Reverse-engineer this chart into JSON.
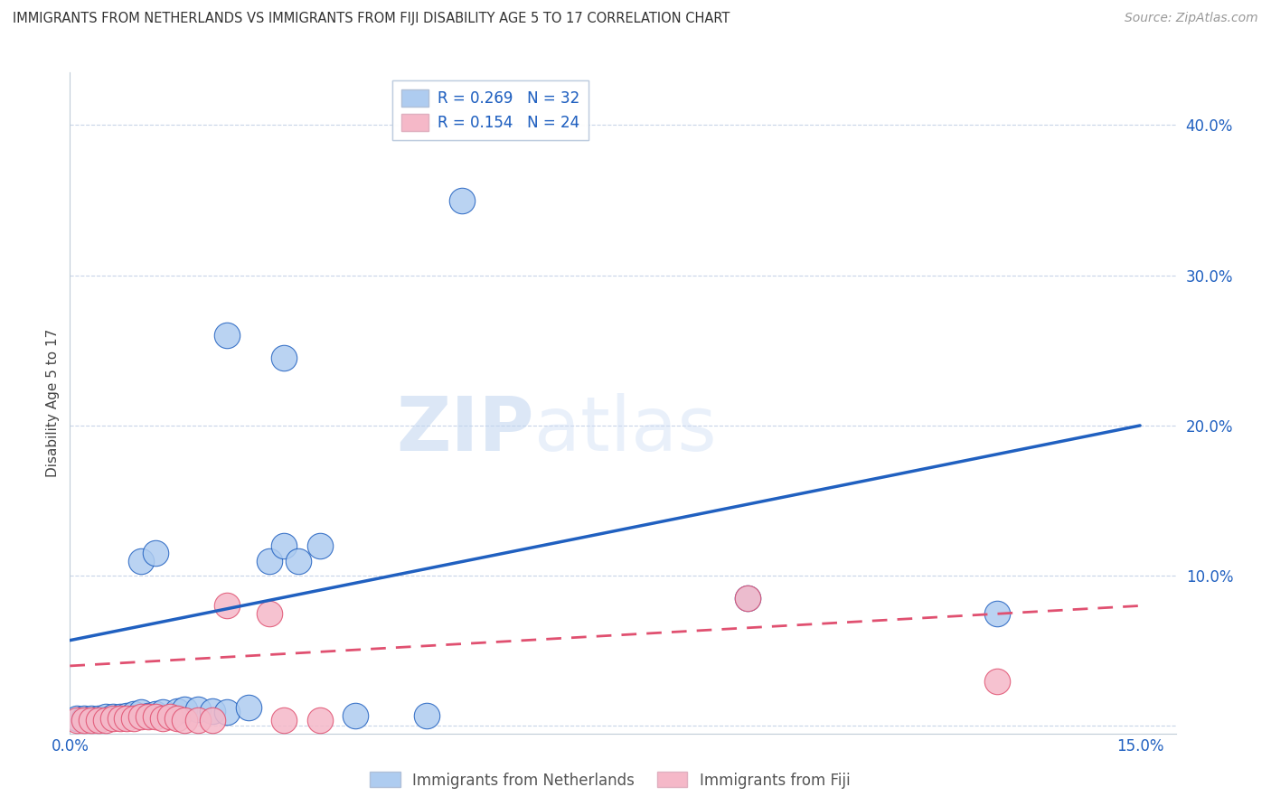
{
  "title": "IMMIGRANTS FROM NETHERLANDS VS IMMIGRANTS FROM FIJI DISABILITY AGE 5 TO 17 CORRELATION CHART",
  "source": "Source: ZipAtlas.com",
  "ylabel": "Disability Age 5 to 17",
  "watermark_zip": "ZIP",
  "watermark_atlas": "atlas",
  "legend_netherlands": "Immigrants from Netherlands",
  "legend_fiji": "Immigrants from Fiji",
  "R_netherlands": "0.269",
  "N_netherlands": "32",
  "R_fiji": "0.154",
  "N_fiji": "24",
  "xlim": [
    0.0,
    0.155
  ],
  "ylim": [
    -0.005,
    0.435
  ],
  "yticks": [
    0.0,
    0.1,
    0.2,
    0.3,
    0.4
  ],
  "ytick_labels": [
    "",
    "10.0%",
    "20.0%",
    "30.0%",
    "40.0%"
  ],
  "xticks": [
    0.0,
    0.03,
    0.06,
    0.09,
    0.12,
    0.15
  ],
  "xtick_labels": [
    "0.0%",
    "",
    "",
    "",
    "",
    "15.0%"
  ],
  "color_netherlands": "#aeccf0",
  "color_fiji": "#f5b8c8",
  "line_color_netherlands": "#2060c0",
  "line_color_fiji": "#e05070",
  "background_color": "#ffffff",
  "grid_color": "#c8d4e8",
  "scatter_netherlands": [
    [
      0.001,
      0.005
    ],
    [
      0.002,
      0.005
    ],
    [
      0.003,
      0.005
    ],
    [
      0.004,
      0.005
    ],
    [
      0.005,
      0.006
    ],
    [
      0.006,
      0.006
    ],
    [
      0.007,
      0.006
    ],
    [
      0.008,
      0.007
    ],
    [
      0.009,
      0.008
    ],
    [
      0.01,
      0.009
    ],
    [
      0.011,
      0.007
    ],
    [
      0.012,
      0.008
    ],
    [
      0.013,
      0.009
    ],
    [
      0.015,
      0.01
    ],
    [
      0.016,
      0.011
    ],
    [
      0.018,
      0.011
    ],
    [
      0.02,
      0.01
    ],
    [
      0.022,
      0.009
    ],
    [
      0.025,
      0.012
    ],
    [
      0.028,
      0.11
    ],
    [
      0.03,
      0.12
    ],
    [
      0.032,
      0.11
    ],
    [
      0.035,
      0.12
    ],
    [
      0.04,
      0.007
    ],
    [
      0.05,
      0.007
    ],
    [
      0.01,
      0.11
    ],
    [
      0.012,
      0.115
    ],
    [
      0.055,
      0.35
    ],
    [
      0.022,
      0.26
    ],
    [
      0.03,
      0.245
    ],
    [
      0.095,
      0.085
    ],
    [
      0.13,
      0.075
    ]
  ],
  "scatter_fiji": [
    [
      0.001,
      0.004
    ],
    [
      0.002,
      0.004
    ],
    [
      0.003,
      0.004
    ],
    [
      0.004,
      0.004
    ],
    [
      0.005,
      0.004
    ],
    [
      0.006,
      0.005
    ],
    [
      0.007,
      0.005
    ],
    [
      0.008,
      0.005
    ],
    [
      0.009,
      0.005
    ],
    [
      0.01,
      0.006
    ],
    [
      0.011,
      0.006
    ],
    [
      0.012,
      0.006
    ],
    [
      0.013,
      0.005
    ],
    [
      0.014,
      0.006
    ],
    [
      0.015,
      0.005
    ],
    [
      0.016,
      0.004
    ],
    [
      0.018,
      0.004
    ],
    [
      0.02,
      0.004
    ],
    [
      0.022,
      0.08
    ],
    [
      0.028,
      0.075
    ],
    [
      0.03,
      0.004
    ],
    [
      0.035,
      0.004
    ],
    [
      0.095,
      0.085
    ],
    [
      0.13,
      0.03
    ]
  ],
  "trendline_netherlands": [
    [
      0.0,
      0.057
    ],
    [
      0.15,
      0.2
    ]
  ],
  "trendline_fiji": [
    [
      0.0,
      0.04
    ],
    [
      0.15,
      0.08
    ]
  ]
}
